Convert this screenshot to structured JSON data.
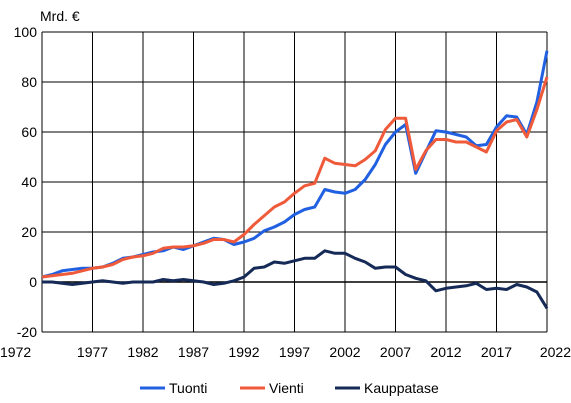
{
  "chart_data": {
    "type": "line",
    "ylabel": "Mrd. €",
    "xlim": [
      1972,
      2022
    ],
    "ylim": [
      -20,
      100
    ],
    "xticks": [
      1972,
      1977,
      1982,
      1987,
      1992,
      1997,
      2002,
      2007,
      2012,
      2017,
      2022
    ],
    "yticks": [
      -20,
      0,
      20,
      40,
      60,
      80,
      100
    ],
    "grid": "vertical-and-horizontal",
    "legend_position": "bottom",
    "x": [
      1972,
      1973,
      1974,
      1975,
      1976,
      1977,
      1978,
      1979,
      1980,
      1981,
      1982,
      1983,
      1984,
      1985,
      1986,
      1987,
      1988,
      1989,
      1990,
      1991,
      1992,
      1993,
      1994,
      1995,
      1996,
      1997,
      1998,
      1999,
      2000,
      2001,
      2002,
      2003,
      2004,
      2005,
      2006,
      2007,
      2008,
      2009,
      2010,
      2011,
      2012,
      2013,
      2014,
      2015,
      2016,
      2017,
      2018,
      2019,
      2020,
      2021,
      2022
    ],
    "series": [
      {
        "name": "Tuonti",
        "color": "#2160e0",
        "values": [
          2.0,
          3.0,
          4.5,
          5.0,
          5.5,
          5.5,
          6.0,
          7.5,
          9.5,
          10.0,
          11.0,
          12.0,
          12.5,
          14.0,
          13.0,
          14.5,
          16.0,
          17.5,
          17.0,
          15.0,
          16.0,
          17.5,
          20.5,
          22.0,
          24.0,
          27.0,
          29.0,
          30.0,
          37.0,
          36.0,
          35.5,
          37.0,
          41.0,
          47.0,
          55.0,
          60.0,
          63.0,
          43.5,
          52.0,
          60.5,
          60.0,
          59.0,
          58.0,
          54.5,
          55.0,
          62.0,
          66.5,
          66.0,
          59.0,
          72.0,
          92.5
        ]
      },
      {
        "name": "Vienti",
        "color": "#ef5a3a",
        "values": [
          2.0,
          2.5,
          3.0,
          3.5,
          4.5,
          5.5,
          6.0,
          7.0,
          9.0,
          10.0,
          10.5,
          11.5,
          13.5,
          14.0,
          14.0,
          14.5,
          15.5,
          17.0,
          17.0,
          16.0,
          19.0,
          23.0,
          26.5,
          30.0,
          32.0,
          35.5,
          38.5,
          39.5,
          49.5,
          47.5,
          47.0,
          46.5,
          49.0,
          52.5,
          61.0,
          65.5,
          65.5,
          45.0,
          52.5,
          57.0,
          57.0,
          56.0,
          56.0,
          54.0,
          52.0,
          60.5,
          64.0,
          65.0,
          58.0,
          69.0,
          82.0
        ]
      },
      {
        "name": "Kauppatase",
        "color": "#152a57",
        "values": [
          0.0,
          0.0,
          -0.5,
          -1.0,
          -0.5,
          0.0,
          0.5,
          0.0,
          -0.5,
          0.0,
          0.0,
          0.0,
          1.0,
          0.5,
          1.0,
          0.5,
          0.0,
          -1.0,
          -0.5,
          0.5,
          2.0,
          5.5,
          6.0,
          8.0,
          7.5,
          8.5,
          9.5,
          9.5,
          12.5,
          11.5,
          11.5,
          9.5,
          8.0,
          5.5,
          6.0,
          6.0,
          3.0,
          1.5,
          0.5,
          -3.5,
          -2.5,
          -2.0,
          -1.5,
          -0.5,
          -3.0,
          -2.5,
          -3.0,
          -1.0,
          -2.0,
          -4.0,
          -10.5
        ]
      }
    ]
  }
}
